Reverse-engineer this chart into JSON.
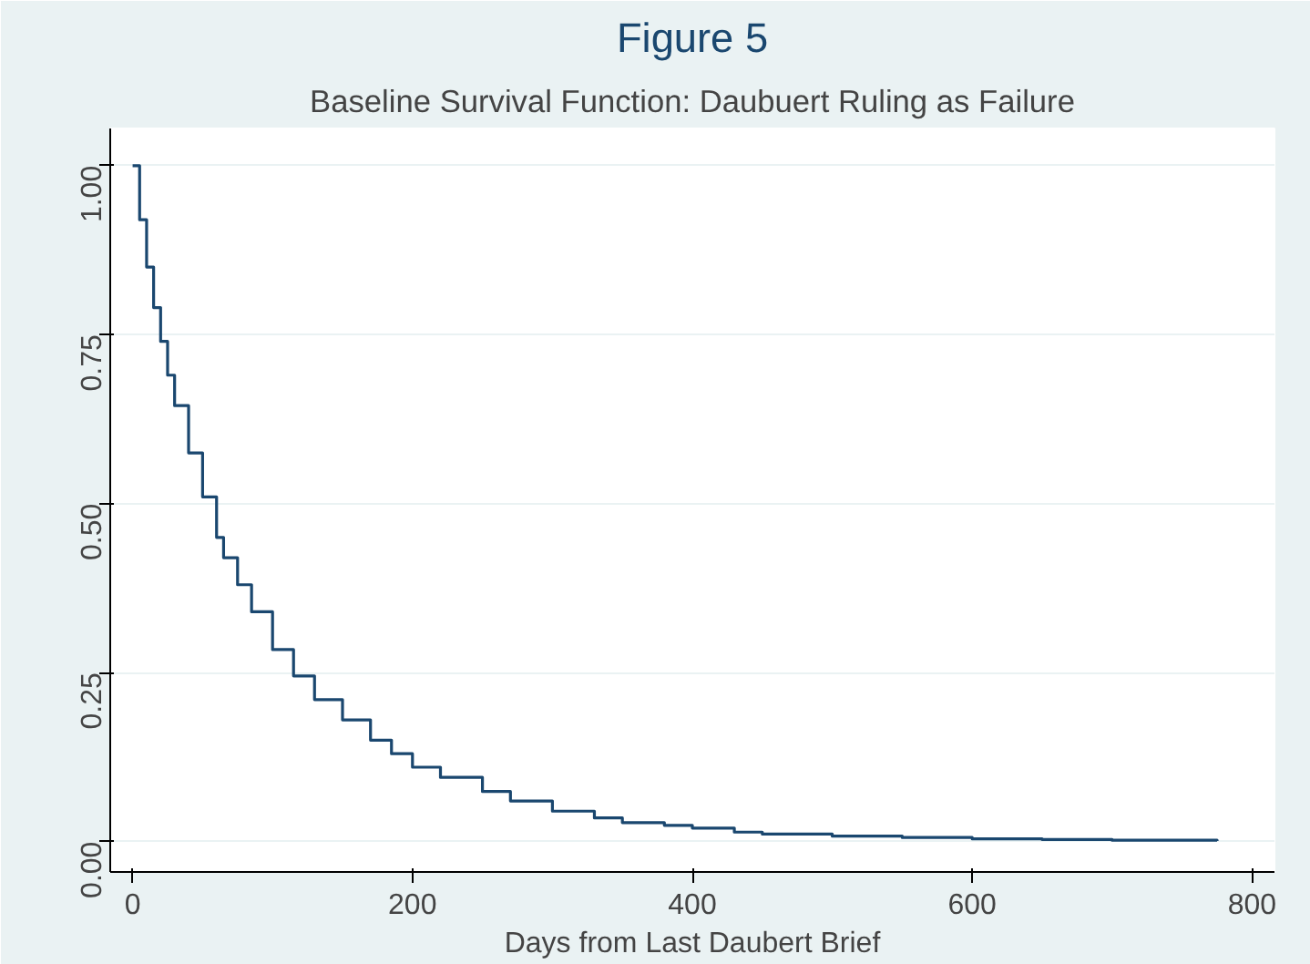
{
  "chart_data": {
    "type": "step",
    "title": "Figure 5",
    "subtitle": "Baseline Survival Function: Daubuert Ruling as Failure",
    "xlabel": "Days from Last Daubert Brief",
    "x": [
      0,
      5,
      10,
      15,
      20,
      25,
      30,
      40,
      50,
      60,
      65,
      75,
      85,
      100,
      115,
      130,
      150,
      170,
      185,
      200,
      220,
      250,
      270,
      300,
      330,
      350,
      380,
      400,
      430,
      450,
      500,
      550,
      600,
      650,
      700,
      775
    ],
    "series": [
      {
        "color": "#1a476f",
        "values": [
          1.0,
          0.92,
          0.85,
          0.79,
          0.74,
          0.69,
          0.645,
          0.575,
          0.51,
          0.45,
          0.42,
          0.38,
          0.34,
          0.284,
          0.245,
          0.21,
          0.18,
          0.15,
          0.13,
          0.11,
          0.095,
          0.074,
          0.06,
          0.045,
          0.035,
          0.028,
          0.024,
          0.02,
          0.014,
          0.011,
          0.008,
          0.006,
          0.004,
          0.003,
          0.002,
          0.001
        ]
      }
    ],
    "xlim": [
      -16,
      816
    ],
    "ylim": [
      -0.045,
      1.055
    ],
    "xticks": [
      0,
      200,
      400,
      600,
      800
    ],
    "yticks": [
      {
        "value": 0,
        "label": "0.00"
      },
      {
        "value": 0.25,
        "label": "0.25"
      },
      {
        "value": 0.5,
        "label": "0.50"
      },
      {
        "value": 0.75,
        "label": "0.75"
      },
      {
        "value": 1,
        "label": "1.00"
      }
    ],
    "grid": "y"
  }
}
